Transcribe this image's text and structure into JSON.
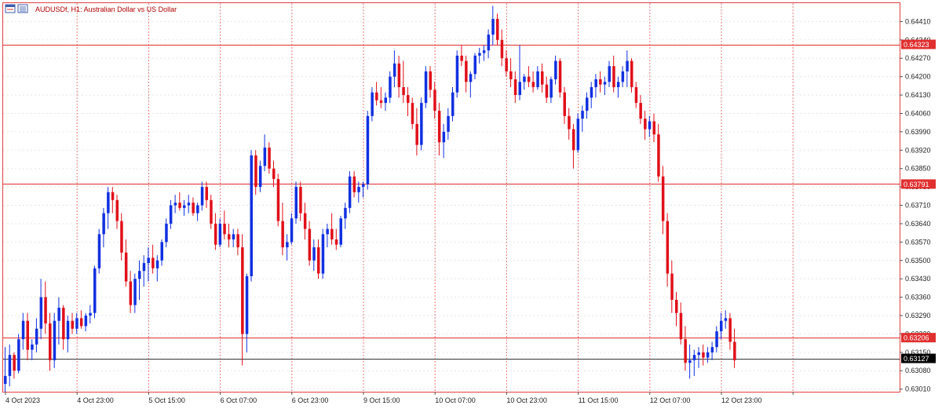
{
  "header": {
    "symbol": "AUDUSDf",
    "timeframe": "H1",
    "description": "Australian Dollar vs US Dollar"
  },
  "colors": {
    "bull": "#1030e0",
    "bear": "#e0101a",
    "level_line": "#e03030",
    "current_line": "#333333",
    "grid_v": "#e04040",
    "grid_h": "#e6e6e6",
    "frame": "#e04040"
  },
  "chart_data": {
    "type": "candlestick",
    "ylim": [
      0.63,
      0.6448
    ],
    "y_ticks": [
      "0.64410",
      "0.64340",
      "0.64270",
      "0.64200",
      "0.64130",
      "0.64060",
      "0.63990",
      "0.63920",
      "0.63850",
      "0.63780",
      "0.63710",
      "0.63640",
      "0.63570",
      "0.63500",
      "0.63430",
      "0.63360",
      "0.63290",
      "0.63220",
      "0.63150",
      "0.63080",
      "0.63010"
    ],
    "x_labels": [
      "4 Oct 2023",
      "4 Oct 23:00",
      "5 Oct 15:00",
      "6 Oct 07:00",
      "6 Oct 23:00",
      "9 Oct 15:00",
      "10 Oct 07:00",
      "10 Oct 23:00",
      "11 Oct 15:00",
      "12 Oct 07:00",
      "12 Oct 23:00"
    ],
    "x_gridlines": [
      0,
      16,
      32,
      48,
      64,
      80,
      96,
      112,
      128,
      144,
      160,
      176
    ],
    "levels": [
      {
        "label": "0.64323",
        "value": 0.64323
      },
      {
        "label": "0.63791",
        "value": 0.63791
      },
      {
        "label": "0.63206",
        "value": 0.63206
      }
    ],
    "current_price": {
      "label": "0.63127",
      "value": 0.63127
    },
    "candles": [
      [
        0.6303,
        0.6317,
        0.63,
        0.6306
      ],
      [
        0.6306,
        0.6318,
        0.6302,
        0.6314
      ],
      [
        0.6314,
        0.6315,
        0.6305,
        0.6308
      ],
      [
        0.6308,
        0.6322,
        0.6307,
        0.632
      ],
      [
        0.632,
        0.633,
        0.6316,
        0.6327
      ],
      [
        0.6327,
        0.633,
        0.6312,
        0.6316
      ],
      [
        0.6316,
        0.632,
        0.6312,
        0.6318
      ],
      [
        0.6318,
        0.6328,
        0.6315,
        0.6324
      ],
      [
        0.6324,
        0.6343,
        0.632,
        0.6336
      ],
      [
        0.6336,
        0.6342,
        0.6322,
        0.6326
      ],
      [
        0.6326,
        0.633,
        0.6308,
        0.6312
      ],
      [
        0.6312,
        0.633,
        0.6309,
        0.6327
      ],
      [
        0.6327,
        0.6336,
        0.6318,
        0.6332
      ],
      [
        0.6332,
        0.6333,
        0.6316,
        0.632
      ],
      [
        0.632,
        0.6329,
        0.6315,
        0.6327
      ],
      [
        0.6327,
        0.633,
        0.6322,
        0.6324
      ],
      [
        0.6324,
        0.633,
        0.6322,
        0.6328
      ],
      [
        0.6328,
        0.6331,
        0.6324,
        0.6325
      ],
      [
        0.6325,
        0.633,
        0.6323,
        0.6329
      ],
      [
        0.6329,
        0.6333,
        0.6326,
        0.633
      ],
      [
        0.633,
        0.6348,
        0.6328,
        0.6347
      ],
      [
        0.6347,
        0.6362,
        0.6345,
        0.636
      ],
      [
        0.636,
        0.637,
        0.6355,
        0.6368
      ],
      [
        0.6368,
        0.6378,
        0.6362,
        0.6376
      ],
      [
        0.6376,
        0.6378,
        0.6368,
        0.6373
      ],
      [
        0.6373,
        0.6375,
        0.6362,
        0.6365
      ],
      [
        0.6365,
        0.6368,
        0.635,
        0.6353
      ],
      [
        0.6353,
        0.6358,
        0.634,
        0.6342
      ],
      [
        0.6342,
        0.6346,
        0.633,
        0.6333
      ],
      [
        0.6333,
        0.6345,
        0.633,
        0.6343
      ],
      [
        0.6343,
        0.635,
        0.6335,
        0.6346
      ],
      [
        0.6346,
        0.6352,
        0.634,
        0.6349
      ],
      [
        0.6349,
        0.6355,
        0.6342,
        0.6351
      ],
      [
        0.6351,
        0.6356,
        0.6345,
        0.6347
      ],
      [
        0.6347,
        0.6352,
        0.6342,
        0.635
      ],
      [
        0.635,
        0.6358,
        0.6348,
        0.6357
      ],
      [
        0.6357,
        0.6366,
        0.6355,
        0.6364
      ],
      [
        0.6364,
        0.6373,
        0.6362,
        0.6371
      ],
      [
        0.6371,
        0.6375,
        0.6368,
        0.6372
      ],
      [
        0.6372,
        0.6376,
        0.6369,
        0.637
      ],
      [
        0.637,
        0.6373,
        0.6367,
        0.6371
      ],
      [
        0.6371,
        0.6375,
        0.6368,
        0.6372
      ],
      [
        0.6372,
        0.6374,
        0.6367,
        0.6368
      ],
      [
        0.6368,
        0.6372,
        0.6365,
        0.6371
      ],
      [
        0.6371,
        0.638,
        0.6369,
        0.6378
      ],
      [
        0.6378,
        0.638,
        0.637,
        0.6373
      ],
      [
        0.6373,
        0.6375,
        0.6362,
        0.6364
      ],
      [
        0.6364,
        0.6368,
        0.6354,
        0.6356
      ],
      [
        0.6356,
        0.6366,
        0.6355,
        0.6364
      ],
      [
        0.6364,
        0.6369,
        0.6358,
        0.636
      ],
      [
        0.636,
        0.6364,
        0.6355,
        0.6358
      ],
      [
        0.6358,
        0.6362,
        0.6355,
        0.636
      ],
      [
        0.636,
        0.6362,
        0.6352,
        0.6355
      ],
      [
        0.6355,
        0.636,
        0.631,
        0.6322
      ],
      [
        0.6322,
        0.6345,
        0.6315,
        0.6344
      ],
      [
        0.6344,
        0.6392,
        0.6342,
        0.639
      ],
      [
        0.639,
        0.6392,
        0.6375,
        0.6378
      ],
      [
        0.6378,
        0.6388,
        0.6376,
        0.6386
      ],
      [
        0.6386,
        0.6398,
        0.6384,
        0.6393
      ],
      [
        0.6393,
        0.6395,
        0.6383,
        0.6385
      ],
      [
        0.6385,
        0.6388,
        0.6378,
        0.6381
      ],
      [
        0.6381,
        0.6383,
        0.6363,
        0.6365
      ],
      [
        0.6365,
        0.6372,
        0.6352,
        0.6355
      ],
      [
        0.6355,
        0.636,
        0.635,
        0.6357
      ],
      [
        0.6357,
        0.6368,
        0.6356,
        0.6366
      ],
      [
        0.6366,
        0.638,
        0.6364,
        0.6378
      ],
      [
        0.6378,
        0.638,
        0.6365,
        0.6368
      ],
      [
        0.6368,
        0.6372,
        0.6358,
        0.6362
      ],
      [
        0.6362,
        0.6365,
        0.6348,
        0.635
      ],
      [
        0.635,
        0.6358,
        0.6346,
        0.6355
      ],
      [
        0.6355,
        0.6358,
        0.6343,
        0.6345
      ],
      [
        0.6345,
        0.6362,
        0.6343,
        0.636
      ],
      [
        0.636,
        0.6364,
        0.6355,
        0.6362
      ],
      [
        0.6362,
        0.6368,
        0.6356,
        0.6358
      ],
      [
        0.6358,
        0.6362,
        0.6354,
        0.6356
      ],
      [
        0.6356,
        0.6367,
        0.6355,
        0.6366
      ],
      [
        0.6366,
        0.6372,
        0.6362,
        0.637
      ],
      [
        0.637,
        0.6384,
        0.6368,
        0.6382
      ],
      [
        0.6382,
        0.6384,
        0.6374,
        0.6376
      ],
      [
        0.6376,
        0.638,
        0.6372,
        0.6378
      ],
      [
        0.6378,
        0.638,
        0.6374,
        0.6379
      ],
      [
        0.6379,
        0.6407,
        0.6377,
        0.6405
      ],
      [
        0.6405,
        0.6416,
        0.6403,
        0.6414
      ],
      [
        0.6414,
        0.6418,
        0.6409,
        0.6411
      ],
      [
        0.6411,
        0.6416,
        0.6408,
        0.641
      ],
      [
        0.641,
        0.6414,
        0.6407,
        0.6412
      ],
      [
        0.6412,
        0.6422,
        0.641,
        0.642
      ],
      [
        0.642,
        0.643,
        0.6416,
        0.6425
      ],
      [
        0.6425,
        0.6428,
        0.6412,
        0.6416
      ],
      [
        0.6416,
        0.6426,
        0.641,
        0.6413
      ],
      [
        0.6413,
        0.6416,
        0.6405,
        0.641
      ],
      [
        0.641,
        0.6412,
        0.64,
        0.6402
      ],
      [
        0.6402,
        0.6408,
        0.639,
        0.6394
      ],
      [
        0.6394,
        0.6412,
        0.6392,
        0.641
      ],
      [
        0.641,
        0.6424,
        0.6408,
        0.6422
      ],
      [
        0.6422,
        0.6424,
        0.6412,
        0.6415
      ],
      [
        0.6415,
        0.6418,
        0.6404,
        0.6407
      ],
      [
        0.6407,
        0.641,
        0.639,
        0.6395
      ],
      [
        0.6395,
        0.6402,
        0.6389,
        0.6399
      ],
      [
        0.6399,
        0.6408,
        0.6396,
        0.6405
      ],
      [
        0.6405,
        0.6416,
        0.6403,
        0.6414
      ],
      [
        0.6414,
        0.643,
        0.6412,
        0.6428
      ],
      [
        0.6428,
        0.6432,
        0.6424,
        0.6426
      ],
      [
        0.6426,
        0.6428,
        0.6414,
        0.6418
      ],
      [
        0.6418,
        0.6422,
        0.6412,
        0.6421
      ],
      [
        0.6421,
        0.6429,
        0.6419,
        0.6428
      ],
      [
        0.6428,
        0.6431,
        0.6425,
        0.6429
      ],
      [
        0.6429,
        0.6432,
        0.6426,
        0.643
      ],
      [
        0.643,
        0.6438,
        0.6427,
        0.6436
      ],
      [
        0.6436,
        0.6447,
        0.6432,
        0.6442
      ],
      [
        0.6442,
        0.6444,
        0.6432,
        0.6434
      ],
      [
        0.6434,
        0.6438,
        0.6424,
        0.6427
      ],
      [
        0.6427,
        0.643,
        0.642,
        0.6422
      ],
      [
        0.6422,
        0.6427,
        0.6416,
        0.6419
      ],
      [
        0.6419,
        0.6422,
        0.641,
        0.6413
      ],
      [
        0.6413,
        0.6432,
        0.6411,
        0.6418
      ],
      [
        0.6418,
        0.6421,
        0.6415,
        0.642
      ],
      [
        0.642,
        0.6424,
        0.6416,
        0.6418
      ],
      [
        0.6418,
        0.6422,
        0.6414,
        0.6416
      ],
      [
        0.6416,
        0.6424,
        0.6415,
        0.6422
      ],
      [
        0.6422,
        0.6425,
        0.6414,
        0.6417
      ],
      [
        0.6417,
        0.642,
        0.641,
        0.6412
      ],
      [
        0.6412,
        0.642,
        0.641,
        0.6419
      ],
      [
        0.6419,
        0.6428,
        0.6417,
        0.6426
      ],
      [
        0.6426,
        0.6427,
        0.6412,
        0.6414
      ],
      [
        0.6414,
        0.6416,
        0.6402,
        0.6405
      ],
      [
        0.6405,
        0.6408,
        0.6396,
        0.64
      ],
      [
        0.64,
        0.6402,
        0.6385,
        0.6392
      ],
      [
        0.6392,
        0.6406,
        0.6391,
        0.6404
      ],
      [
        0.6404,
        0.6409,
        0.6399,
        0.6407
      ],
      [
        0.6407,
        0.6414,
        0.6404,
        0.6412
      ],
      [
        0.6412,
        0.6418,
        0.6408,
        0.6416
      ],
      [
        0.6416,
        0.6421,
        0.6412,
        0.6419
      ],
      [
        0.6419,
        0.6422,
        0.6414,
        0.6417
      ],
      [
        0.6417,
        0.642,
        0.6413,
        0.6418
      ],
      [
        0.6418,
        0.6426,
        0.6416,
        0.6424
      ],
      [
        0.6424,
        0.6428,
        0.6414,
        0.6416
      ],
      [
        0.6416,
        0.642,
        0.6412,
        0.6418
      ],
      [
        0.6418,
        0.6424,
        0.6416,
        0.6422
      ],
      [
        0.6422,
        0.643,
        0.6416,
        0.6426
      ],
      [
        0.6426,
        0.6427,
        0.6414,
        0.6416
      ],
      [
        0.6416,
        0.6418,
        0.6408,
        0.641
      ],
      [
        0.641,
        0.6413,
        0.6402,
        0.6404
      ],
      [
        0.6404,
        0.6407,
        0.6396,
        0.64
      ],
      [
        0.64,
        0.6405,
        0.6397,
        0.6403
      ],
      [
        0.6403,
        0.6406,
        0.6395,
        0.6398
      ],
      [
        0.6398,
        0.6402,
        0.638,
        0.6382
      ],
      [
        0.6382,
        0.6386,
        0.636,
        0.6365
      ],
      [
        0.6365,
        0.6368,
        0.634,
        0.6345
      ],
      [
        0.6345,
        0.635,
        0.633,
        0.6335
      ],
      [
        0.6335,
        0.6338,
        0.6325,
        0.633
      ],
      [
        0.633,
        0.6334,
        0.6318,
        0.632
      ],
      [
        0.632,
        0.6325,
        0.6308,
        0.6311
      ],
      [
        0.6311,
        0.6318,
        0.6305,
        0.6312
      ],
      [
        0.6312,
        0.6316,
        0.6306,
        0.6314
      ],
      [
        0.6314,
        0.6317,
        0.6309,
        0.6315
      ],
      [
        0.6315,
        0.6318,
        0.631,
        0.6313
      ],
      [
        0.6313,
        0.6317,
        0.6311,
        0.6315
      ],
      [
        0.6315,
        0.6319,
        0.6312,
        0.6317
      ],
      [
        0.6317,
        0.6325,
        0.6315,
        0.6323
      ],
      [
        0.6323,
        0.633,
        0.632,
        0.6327
      ],
      [
        0.6327,
        0.6331,
        0.6324,
        0.6328
      ],
      [
        0.6328,
        0.633,
        0.6316,
        0.6319
      ],
      [
        0.6319,
        0.6324,
        0.6309,
        0.6312
      ]
    ]
  }
}
